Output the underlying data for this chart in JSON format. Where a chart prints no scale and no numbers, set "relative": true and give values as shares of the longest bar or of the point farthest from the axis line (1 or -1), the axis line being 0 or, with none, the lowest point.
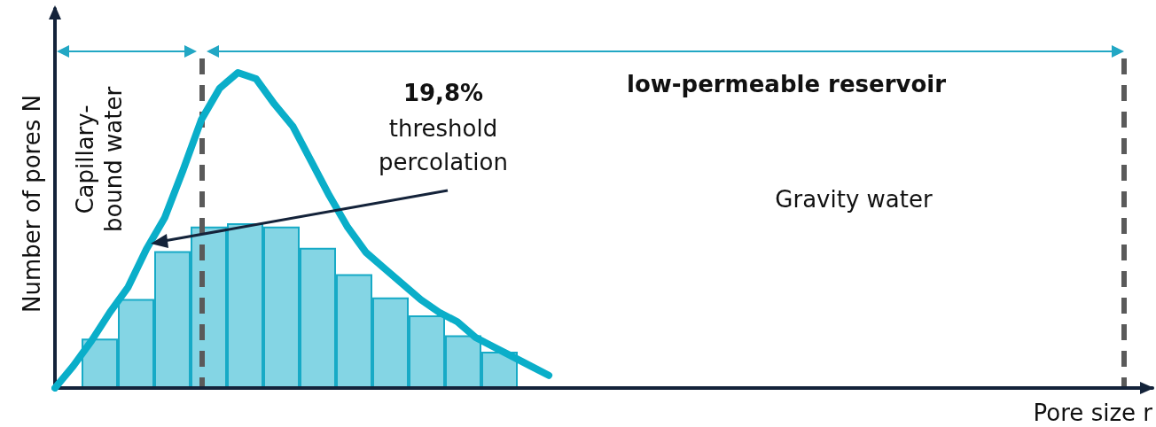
{
  "chart_data": [
    {
      "type": "line",
      "relative": true,
      "xlabel": "Pore size r",
      "ylabel": "Number of pores N",
      "categories": [
        null,
        null,
        null,
        null,
        null,
        null,
        null,
        null,
        null,
        null,
        null,
        null,
        null,
        null,
        null,
        null,
        null,
        null,
        null,
        null,
        null,
        null,
        null,
        null,
        null,
        null,
        null,
        null,
        null,
        null,
        null,
        null,
        null,
        null,
        null,
        null,
        null,
        null,
        null,
        null,
        null,
        null,
        null,
        null,
        null,
        null,
        null,
        null,
        null,
        null,
        null,
        null,
        null,
        null,
        null,
        null,
        null,
        null,
        null,
        null,
        null
      ],
      "series": [
        {
          "color": "#0aaec9",
          "values": [
            0,
            0.07,
            0.15,
            0.24,
            0.32,
            0.44,
            0.54,
            0.69,
            0.85,
            0.95,
            1.0,
            0.98,
            0.9,
            0.83,
            0.72,
            0.61,
            0.51,
            0.43,
            0.38,
            0.33,
            0.28,
            0.24,
            0.21,
            0.16,
            0.13,
            0.1,
            0.07,
            0.04,
            null,
            null,
            null,
            null,
            null,
            null,
            null,
            null,
            null,
            null,
            null,
            null,
            null,
            null,
            null,
            null,
            null,
            null,
            null,
            null,
            null,
            null,
            null,
            null,
            null,
            null,
            null,
            null,
            null,
            null,
            null,
            null,
            null
          ]
        }
      ],
      "marker": "none",
      "line_style": "solid",
      "annotations": [
        "low-permeable reservoir",
        "Capillary-bound water",
        "19,8% threshold percolation",
        "Gravity water"
      ]
    },
    {
      "type": "bar",
      "relative": true,
      "categories": [
        null,
        null,
        null,
        null,
        null,
        null,
        null,
        null,
        null,
        null,
        null,
        null
      ],
      "series": [
        {
          "color": "#84d5e4",
          "values": [
            0.3,
            0.54,
            0.83,
            0.98,
            1.0,
            0.98,
            0.85,
            0.69,
            0.55,
            0.44,
            0.32,
            0.22
          ]
        }
      ]
    }
  ]
}
